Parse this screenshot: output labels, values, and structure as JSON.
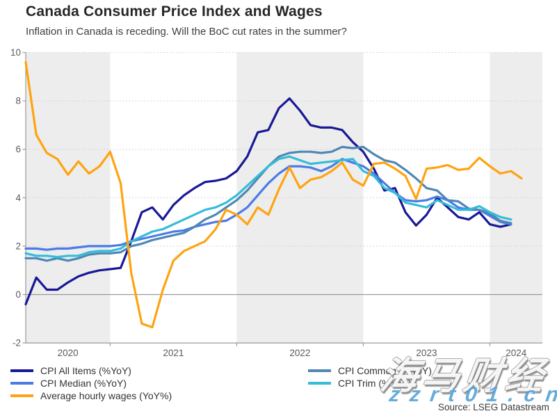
{
  "header": {
    "title": "Canada Consumer Price Index and Wages",
    "subtitle": "Inflation in Canada is receding. Will the BoC cut rates in the summer?"
  },
  "source_label": "Source: LSEG Datastream",
  "watermark": {
    "line1": "海马财经",
    "line2": "z z r t 0 1 . c n"
  },
  "chart_data": {
    "type": "line",
    "title": "Canada Consumer Price Index and Wages",
    "x_frequency": "monthly",
    "x_start": "2020-05",
    "x_end_cpi_series": "2024-03",
    "x_end_wages_series": "2024-04",
    "x_tick_labels": [
      "2020",
      "2021",
      "2022",
      "2023",
      "2024"
    ],
    "shaded_years": [
      "2020",
      "2022",
      "2024"
    ],
    "ylim": [
      -2,
      10
    ],
    "y_ticks": [
      -2,
      0,
      2,
      4,
      6,
      8,
      10
    ],
    "grid": "dotted horizontal gridlines at even values, solid line at zero, alternating light-gray year bands",
    "legend_position": "bottom, two columns",
    "colors": {
      "cpi_all_items": "#181896",
      "cpi_median": "#4b7be5",
      "cpi_common": "#4e87b6",
      "cpi_trim": "#35bcd8",
      "wages": "#ffa30f",
      "year_band": "#ededed",
      "gridline": "#cccccc",
      "axis": "#999999"
    },
    "series": [
      {
        "name": "CPI All Items (%YoY)",
        "color": "#181896",
        "values": [
          -0.4,
          0.7,
          0.2,
          0.2,
          0.5,
          0.75,
          0.9,
          1.0,
          1.05,
          1.1,
          2.2,
          3.4,
          3.6,
          3.1,
          3.7,
          4.1,
          4.4,
          4.65,
          4.7,
          4.8,
          5.1,
          5.7,
          6.7,
          6.8,
          7.7,
          8.1,
          7.6,
          7.0,
          6.9,
          6.9,
          6.8,
          6.3,
          5.9,
          5.2,
          4.3,
          4.4,
          3.4,
          2.85,
          3.3,
          4.0,
          3.6,
          3.2,
          3.1,
          3.4,
          2.9,
          2.8,
          2.9
        ]
      },
      {
        "name": "CPI Median (%YoY)",
        "color": "#4b7be5",
        "values": [
          1.9,
          1.9,
          1.85,
          1.9,
          1.9,
          1.95,
          2.0,
          2.0,
          2.0,
          2.05,
          2.2,
          2.3,
          2.4,
          2.5,
          2.6,
          2.65,
          2.8,
          2.9,
          3.0,
          3.05,
          3.3,
          3.6,
          4.1,
          4.6,
          5.0,
          5.3,
          5.3,
          5.25,
          5.1,
          5.3,
          5.6,
          5.45,
          5.3,
          5.0,
          4.6,
          4.2,
          3.9,
          3.85,
          3.9,
          4.05,
          3.9,
          3.6,
          3.5,
          3.5,
          3.25,
          3.0,
          2.9
        ]
      },
      {
        "name": "CPI Common (%YoY)",
        "color": "#4e87b6",
        "values": [
          1.5,
          1.5,
          1.4,
          1.5,
          1.4,
          1.5,
          1.65,
          1.7,
          1.7,
          1.75,
          2.0,
          2.1,
          2.25,
          2.35,
          2.45,
          2.55,
          2.8,
          3.1,
          3.3,
          3.6,
          3.9,
          4.3,
          4.8,
          5.3,
          5.7,
          5.85,
          5.9,
          5.9,
          5.85,
          5.9,
          6.1,
          6.05,
          6.1,
          5.8,
          5.55,
          5.45,
          5.15,
          4.8,
          4.4,
          4.3,
          3.9,
          3.85,
          3.55,
          3.5,
          3.35,
          3.05,
          2.95
        ]
      },
      {
        "name": "CPI Trim (%YoY)",
        "color": "#35bcd8",
        "values": [
          1.7,
          1.6,
          1.6,
          1.55,
          1.6,
          1.6,
          1.75,
          1.8,
          1.8,
          1.9,
          2.2,
          2.4,
          2.6,
          2.7,
          2.9,
          3.1,
          3.3,
          3.5,
          3.6,
          3.8,
          4.1,
          4.5,
          4.9,
          5.3,
          5.6,
          5.7,
          5.55,
          5.4,
          5.45,
          5.5,
          5.55,
          5.6,
          5.1,
          4.9,
          4.4,
          4.2,
          3.8,
          3.7,
          3.6,
          3.9,
          3.7,
          3.5,
          3.5,
          3.65,
          3.4,
          3.2,
          3.1
        ]
      },
      {
        "name": "Average hourly wages (YoY%)",
        "color": "#ffa30f",
        "values": [
          9.6,
          6.6,
          5.85,
          5.6,
          4.95,
          5.5,
          5.0,
          5.3,
          5.9,
          4.6,
          0.9,
          -1.2,
          -1.35,
          0.2,
          1.4,
          1.8,
          2.0,
          2.2,
          2.7,
          3.5,
          3.3,
          2.9,
          3.6,
          3.3,
          4.35,
          5.25,
          4.4,
          4.75,
          4.85,
          5.1,
          5.45,
          4.75,
          4.5,
          5.4,
          5.45,
          5.2,
          4.9,
          3.95,
          5.2,
          5.25,
          5.35,
          5.15,
          5.2,
          5.65,
          5.3,
          5.0,
          5.1,
          4.8
        ]
      }
    ]
  },
  "legend": {
    "columns": [
      {
        "items": [
          {
            "label": "CPI All Items (%YoY)",
            "color": "#181896"
          },
          {
            "label": "CPI Median (%YoY)",
            "color": "#4b7be5"
          },
          {
            "label": "Average hourly wages (YoY%)",
            "color": "#ffa30f"
          }
        ]
      },
      {
        "items": [
          {
            "label": "CPI Common (%YoY)",
            "color": "#4e87b6"
          },
          {
            "label": "CPI Trim (%YoY)",
            "color": "#35bcd8"
          }
        ]
      }
    ]
  }
}
